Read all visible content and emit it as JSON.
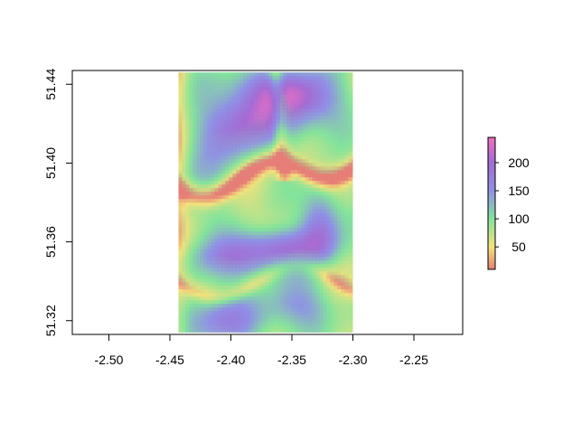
{
  "chart_data": {
    "type": "heatmap",
    "title": "",
    "xlabel": "",
    "ylabel": "",
    "xlim": [
      -2.53,
      -2.21
    ],
    "ylim": [
      51.313,
      51.447
    ],
    "x_ticks": [
      {
        "value": -2.5,
        "label": "-2.50"
      },
      {
        "value": -2.45,
        "label": "-2.45"
      },
      {
        "value": -2.4,
        "label": "-2.40"
      },
      {
        "value": -2.35,
        "label": "-2.35"
      },
      {
        "value": -2.3,
        "label": "-2.30"
      },
      {
        "value": -2.25,
        "label": "-2.25"
      }
    ],
    "y_ticks": [
      {
        "value": 51.32,
        "label": "51.32"
      },
      {
        "value": 51.36,
        "label": "51.36"
      },
      {
        "value": 51.4,
        "label": "51.40"
      },
      {
        "value": 51.44,
        "label": "51.44"
      }
    ],
    "raster_extent": {
      "xmin": -2.443,
      "xmax": -2.3,
      "ymin": 51.314,
      "ymax": 51.446
    },
    "value_range": [
      10,
      245
    ],
    "colorbar": {
      "ticks": [
        {
          "value": 50,
          "label": "50"
        },
        {
          "value": 100,
          "label": "100"
        },
        {
          "value": 150,
          "label": "150"
        },
        {
          "value": 200,
          "label": "200"
        }
      ],
      "stops": [
        {
          "value": 10,
          "color": "#e67f77"
        },
        {
          "value": 50,
          "color": "#f2e27c"
        },
        {
          "value": 100,
          "color": "#83e39b"
        },
        {
          "value": 150,
          "color": "#8f90e6"
        },
        {
          "value": 200,
          "color": "#a36cd3"
        },
        {
          "value": 245,
          "color": "#f06cc2"
        }
      ]
    },
    "legend_position": "right",
    "grid": false
  }
}
